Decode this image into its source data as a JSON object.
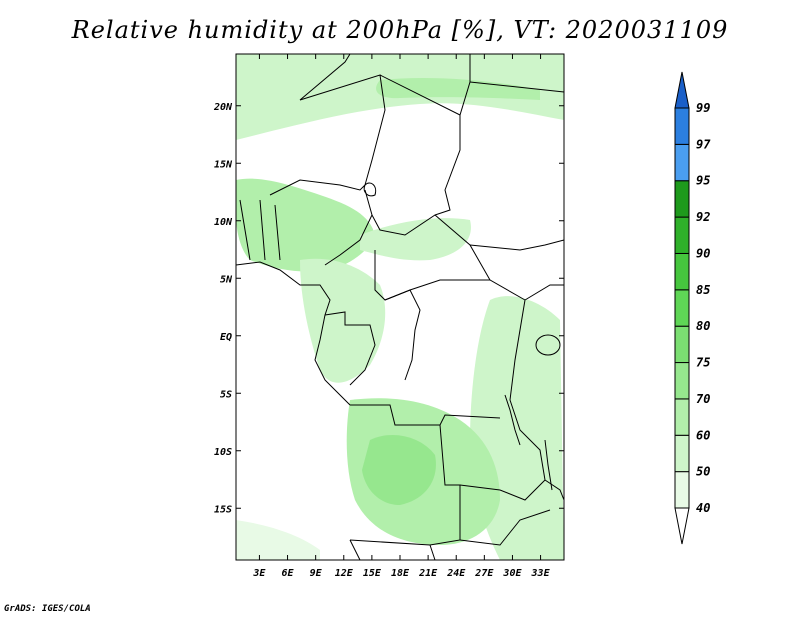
{
  "title": "Relative humidity at 200hPa [%], VT: 2020031109",
  "credit": "GrADS: IGES/COLA",
  "map": {
    "lat_range": [
      -19.5,
      24.5
    ],
    "lon_range": [
      0.5,
      35.5
    ],
    "lat_ticks": [
      {
        "value": 20,
        "label": "20N"
      },
      {
        "value": 15,
        "label": "15N"
      },
      {
        "value": 10,
        "label": "10N"
      },
      {
        "value": 5,
        "label": "5N"
      },
      {
        "value": 0,
        "label": "EQ"
      },
      {
        "value": -5,
        "label": "5S"
      },
      {
        "value": -10,
        "label": "10S"
      },
      {
        "value": -15,
        "label": "15S"
      }
    ],
    "lon_ticks": [
      {
        "value": 3,
        "label": "3E"
      },
      {
        "value": 6,
        "label": "6E"
      },
      {
        "value": 9,
        "label": "9E"
      },
      {
        "value": 12,
        "label": "12E"
      },
      {
        "value": 15,
        "label": "15E"
      },
      {
        "value": 18,
        "label": "18E"
      },
      {
        "value": 21,
        "label": "21E"
      },
      {
        "value": 24,
        "label": "24E"
      },
      {
        "value": 27,
        "label": "27E"
      },
      {
        "value": 30,
        "label": "30E"
      },
      {
        "value": 33,
        "label": "33E"
      }
    ]
  },
  "colorbar": {
    "levels": [
      "40",
      "50",
      "60",
      "70",
      "75",
      "80",
      "85",
      "90",
      "92",
      "95",
      "97",
      "99"
    ],
    "colors": [
      "#e8fae6",
      "#cef5ca",
      "#b2efab",
      "#96e78e",
      "#7bdf72",
      "#5fd656",
      "#46c63e",
      "#2fb12a",
      "#1e9a1c",
      "#4a9ef0",
      "#2b7fe0",
      "#1a5fc8"
    ],
    "under_color": "#ffffff",
    "over_color": "#1a5fc8"
  },
  "colors": {
    "land_outline": "#000000",
    "humid_light": "#cef5ca",
    "humid_mid": "#b2efab",
    "humid_strong": "#96e78e"
  }
}
